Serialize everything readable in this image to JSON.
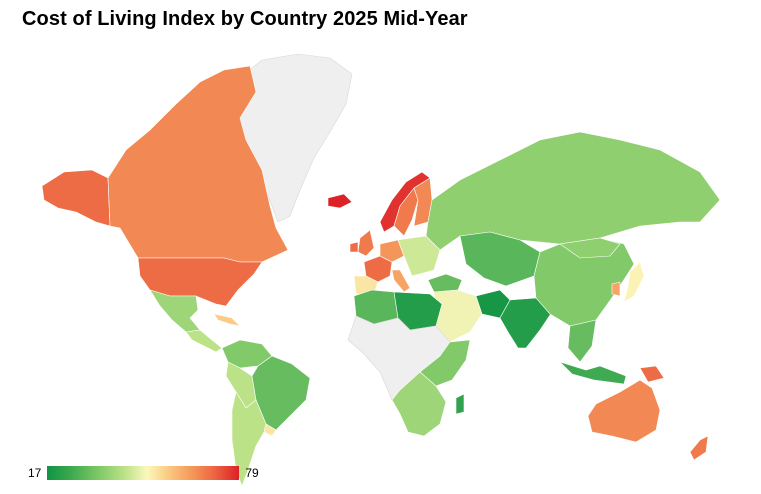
{
  "title": "Cost of Living Index by Country 2025 Mid-Year",
  "legend": {
    "min_label": "17",
    "max_label": "79"
  },
  "colors": {
    "low": "#109444",
    "mid": "#fbf7bd",
    "high": "#dc2127",
    "no_data": "#efefef"
  },
  "chart_data": {
    "type": "choropleth",
    "title": "Cost of Living Index by Country 2025 Mid-Year",
    "scale": {
      "min": 17,
      "max": 79
    },
    "regions": [
      {
        "name": "Canada",
        "value": 66
      },
      {
        "name": "United States",
        "value": 70
      },
      {
        "name": "Alaska (United States)",
        "value": 70
      },
      {
        "name": "Mexico",
        "value": 38
      },
      {
        "name": "Central America",
        "value": 42
      },
      {
        "name": "Cuba & Caribbean",
        "value": 56
      },
      {
        "name": "Greenland",
        "value": null
      },
      {
        "name": "Iceland",
        "value": 79
      },
      {
        "name": "Norway",
        "value": 77
      },
      {
        "name": "Sweden",
        "value": 68
      },
      {
        "name": "Finland",
        "value": 66
      },
      {
        "name": "United Kingdom",
        "value": 68
      },
      {
        "name": "Ireland",
        "value": 70
      },
      {
        "name": "France",
        "value": 70
      },
      {
        "name": "Germany",
        "value": 64
      },
      {
        "name": "Spain & Portugal",
        "value": 52
      },
      {
        "name": "Italy",
        "value": 62
      },
      {
        "name": "Eastern Europe",
        "value": 44
      },
      {
        "name": "Russia",
        "value": 36
      },
      {
        "name": "Kazakhstan & Central Asia",
        "value": 28
      },
      {
        "name": "Middle East",
        "value": 48
      },
      {
        "name": "Turkey",
        "value": 30
      },
      {
        "name": "Pakistan",
        "value": 18
      },
      {
        "name": "India",
        "value": 20
      },
      {
        "name": "China",
        "value": 34
      },
      {
        "name": "Mongolia",
        "value": 36
      },
      {
        "name": "Japan",
        "value": 50
      },
      {
        "name": "South Korea",
        "value": 62
      },
      {
        "name": "Southeast Asia",
        "value": 30
      },
      {
        "name": "Indonesia",
        "value": 24
      },
      {
        "name": "Papua New Guinea",
        "value": 70
      },
      {
        "name": "Australia",
        "value": 66
      },
      {
        "name": "New Zealand",
        "value": 68
      },
      {
        "name": "North Africa (Libya & Egypt)",
        "value": 20
      },
      {
        "name": "Algeria & Morocco",
        "value": 28
      },
      {
        "name": "West & Central Africa",
        "value": null
      },
      {
        "name": "Ethiopia & East Africa",
        "value": 34
      },
      {
        "name": "Southern Africa",
        "value": 38
      },
      {
        "name": "Madagascar",
        "value": 22
      },
      {
        "name": "Brazil",
        "value": 30
      },
      {
        "name": "Colombia & Venezuela",
        "value": 32
      },
      {
        "name": "Peru & Bolivia",
        "value": 34
      },
      {
        "name": "Argentina & Chile",
        "value": 42
      },
      {
        "name": "Uruguay",
        "value": 52
      }
    ]
  }
}
